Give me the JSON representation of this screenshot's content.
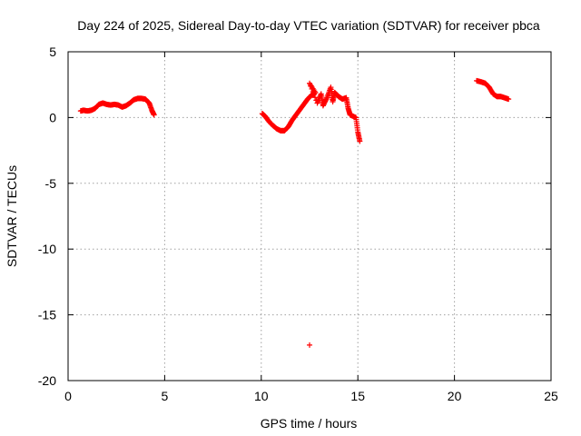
{
  "chart_data": {
    "type": "scatter",
    "title": "Day 224 of 2025, Sidereal Day-to-day VTEC variation (SDTVAR) for receiver pbca",
    "xlabel": "GPS time / hours",
    "ylabel": "SDTVAR / TECUs",
    "xlim": [
      0,
      25
    ],
    "ylim": [
      -20,
      5
    ],
    "xticks": [
      0,
      5,
      10,
      15,
      20,
      25
    ],
    "yticks": [
      5,
      0,
      -5,
      -10,
      -15,
      -20
    ],
    "grid": true,
    "marker": "+",
    "series": [
      {
        "name": "SDTVAR",
        "color": "#ff0000",
        "segments": [
          [
            [
              0.65,
              0.5
            ],
            [
              0.8,
              0.55
            ],
            [
              1.0,
              0.5
            ],
            [
              1.2,
              0.55
            ],
            [
              1.4,
              0.7
            ],
            [
              1.6,
              1.0
            ],
            [
              1.8,
              1.1
            ],
            [
              2.0,
              1.0
            ],
            [
              2.2,
              0.95
            ],
            [
              2.4,
              1.0
            ],
            [
              2.6,
              0.95
            ],
            [
              2.8,
              0.8
            ],
            [
              3.0,
              0.9
            ],
            [
              3.2,
              1.1
            ],
            [
              3.4,
              1.35
            ],
            [
              3.6,
              1.45
            ],
            [
              3.8,
              1.45
            ],
            [
              4.0,
              1.4
            ],
            [
              4.2,
              1.1
            ],
            [
              4.35,
              0.5
            ],
            [
              4.45,
              0.2
            ]
          ],
          [
            [
              10.05,
              0.3
            ],
            [
              10.2,
              0.1
            ],
            [
              10.4,
              -0.3
            ],
            [
              10.6,
              -0.6
            ],
            [
              10.8,
              -0.85
            ],
            [
              11.0,
              -1.0
            ],
            [
              11.2,
              -1.0
            ],
            [
              11.4,
              -0.7
            ],
            [
              11.6,
              -0.2
            ],
            [
              11.8,
              0.2
            ],
            [
              12.0,
              0.6
            ],
            [
              12.2,
              1.0
            ],
            [
              12.4,
              1.4
            ],
            [
              12.6,
              1.7
            ],
            [
              12.8,
              1.9
            ],
            [
              12.5,
              2.6
            ],
            [
              12.9,
              1.1
            ],
            [
              13.1,
              1.8
            ],
            [
              13.2,
              0.9
            ],
            [
              13.4,
              1.5
            ],
            [
              13.6,
              2.3
            ],
            [
              13.7,
              1.2
            ],
            [
              13.8,
              1.9
            ],
            [
              14.0,
              1.6
            ],
            [
              14.2,
              1.4
            ],
            [
              14.4,
              1.5
            ],
            [
              14.5,
              0.7
            ],
            [
              14.6,
              0.2
            ],
            [
              14.9,
              0.0
            ],
            [
              15.0,
              -1.1
            ],
            [
              15.1,
              -1.8
            ]
          ],
          [
            [
              12.5,
              -17.3
            ]
          ],
          [
            [
              21.15,
              2.8
            ],
            [
              21.4,
              2.7
            ],
            [
              21.6,
              2.6
            ],
            [
              21.8,
              2.3
            ],
            [
              22.0,
              1.8
            ],
            [
              22.2,
              1.6
            ],
            [
              22.4,
              1.6
            ],
            [
              22.6,
              1.5
            ],
            [
              22.8,
              1.4
            ]
          ]
        ]
      }
    ]
  }
}
